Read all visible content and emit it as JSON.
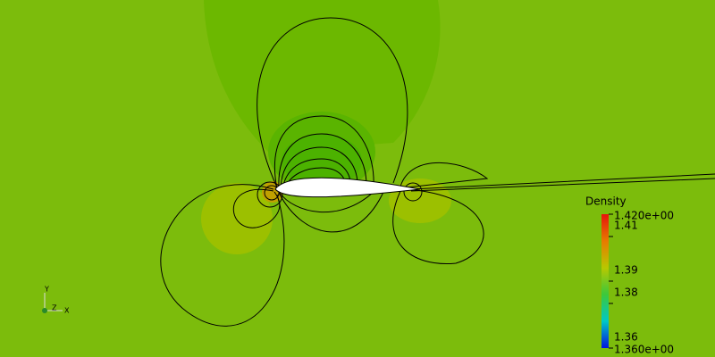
{
  "colorbar": {
    "title": "Density",
    "range": [
      {
        "value": 1.36,
        "label": "1.360e+00"
      },
      {
        "value": 1.42,
        "label": "1.420e+00"
      }
    ],
    "ticks": [
      1.36,
      1.38,
      1.39,
      1.41
    ]
  },
  "axes_triad": {
    "x": "X",
    "y": "Y",
    "z": "Z"
  }
}
